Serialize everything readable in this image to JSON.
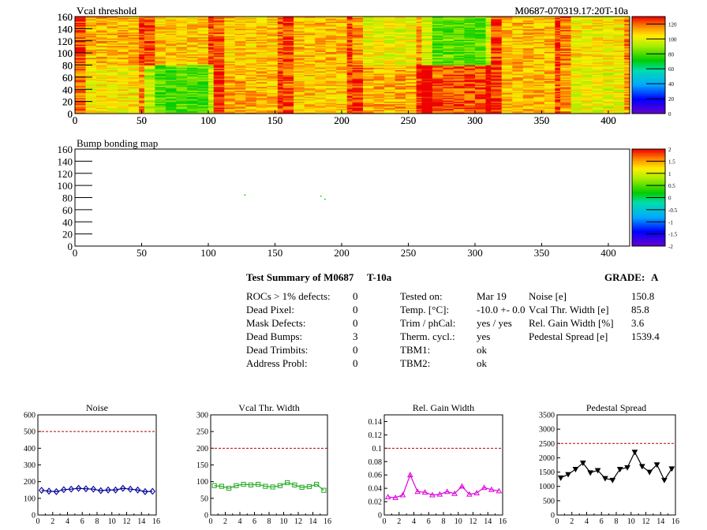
{
  "chart_data": [
    {
      "type": "heatmap",
      "title": "Vcal threshold",
      "title_right": "M0687-070319.17:20T-10a",
      "xlim": [
        0,
        416
      ],
      "ylim": [
        0,
        160
      ],
      "xticks": [
        0,
        50,
        100,
        150,
        200,
        250,
        300,
        350,
        400
      ],
      "yticks": [
        0,
        20,
        40,
        60,
        80,
        100,
        120,
        140,
        160
      ],
      "zlim": [
        0,
        130
      ],
      "zticks": [
        0,
        20,
        40,
        60,
        80,
        100,
        120
      ],
      "roc_mean_values": {
        "bottom_row": [
          103,
          80,
          112,
          108,
          112,
          122,
          110,
          100
        ],
        "top_row": [
          110,
          108,
          108,
          110,
          100,
          82,
          110,
          104
        ]
      }
    },
    {
      "type": "heatmap",
      "title": "Bump bonding map",
      "xlim": [
        0,
        416
      ],
      "ylim": [
        0,
        160
      ],
      "xticks": [
        0,
        50,
        100,
        150,
        200,
        250,
        300,
        350,
        400
      ],
      "yticks": [
        0,
        20,
        40,
        60,
        80,
        100,
        120,
        140,
        160
      ],
      "zlim": [
        -2,
        2
      ],
      "zticks": [
        -2,
        -1.5,
        -1,
        -0.5,
        0,
        0.5,
        1,
        1.5,
        2
      ],
      "points": [
        {
          "x": 127,
          "y": 84,
          "z": 0.2
        },
        {
          "x": 184,
          "y": 82,
          "z": 0.3
        },
        {
          "x": 187,
          "y": 77,
          "z": 0.1
        }
      ]
    },
    {
      "type": "line",
      "title": "Noise",
      "x": [
        0,
        1,
        2,
        3,
        4,
        5,
        6,
        7,
        8,
        9,
        10,
        11,
        12,
        13,
        14,
        15
      ],
      "values": [
        148,
        143,
        140,
        152,
        155,
        160,
        157,
        155,
        146,
        150,
        150,
        160,
        155,
        150,
        140,
        142
      ],
      "reference": 500,
      "xlim": [
        0,
        16
      ],
      "ylim": [
        0,
        600
      ],
      "xticks": [
        0,
        2,
        4,
        6,
        8,
        10,
        12,
        14,
        16
      ],
      "yticks": [
        0,
        100,
        200,
        300,
        400,
        500,
        600
      ],
      "color": "#000099",
      "marker": "diamond"
    },
    {
      "type": "line",
      "title": "Vcal Thr. Width",
      "x": [
        0,
        1,
        2,
        3,
        4,
        5,
        6,
        7,
        8,
        9,
        10,
        11,
        12,
        13,
        14,
        15
      ],
      "values": [
        88,
        86,
        80,
        88,
        92,
        90,
        92,
        86,
        84,
        88,
        97,
        90,
        83,
        85,
        92,
        74
      ],
      "reference": 200,
      "xlim": [
        0,
        16
      ],
      "ylim": [
        0,
        300
      ],
      "xticks": [
        0,
        2,
        4,
        6,
        8,
        10,
        12,
        14,
        16
      ],
      "yticks": [
        0,
        50,
        100,
        150,
        200,
        250,
        300
      ],
      "color": "#22aa22",
      "marker": "square"
    },
    {
      "type": "line",
      "title": "Rel. Gain Width",
      "x": [
        0,
        1,
        2,
        3,
        4,
        5,
        6,
        7,
        8,
        9,
        10,
        11,
        12,
        13,
        14,
        15
      ],
      "values": [
        0.027,
        0.026,
        0.03,
        0.06,
        0.035,
        0.034,
        0.03,
        0.031,
        0.035,
        0.032,
        0.043,
        0.031,
        0.033,
        0.041,
        0.038,
        0.036
      ],
      "reference": 0.1,
      "xlim": [
        0,
        16
      ],
      "ylim": [
        0,
        0.15
      ],
      "xticks": [
        0,
        2,
        4,
        6,
        8,
        10,
        12,
        14,
        16
      ],
      "yticks": [
        0,
        0.02,
        0.04,
        0.06,
        0.08,
        0.1,
        0.12,
        0.14
      ],
      "color": "#dd00dd",
      "marker": "triangle-up"
    },
    {
      "type": "line",
      "title": "Pedestal Spread",
      "x": [
        0,
        1,
        2,
        3,
        4,
        5,
        6,
        7,
        8,
        9,
        10,
        11,
        12,
        13,
        14,
        15
      ],
      "values": [
        1300,
        1420,
        1600,
        1820,
        1480,
        1560,
        1280,
        1220,
        1600,
        1660,
        2200,
        1700,
        1500,
        1760,
        1220,
        1620
      ],
      "reference": 2500,
      "xlim": [
        0,
        16
      ],
      "ylim": [
        0,
        3500
      ],
      "xticks": [
        0,
        2,
        4,
        6,
        8,
        10,
        12,
        14,
        16
      ],
      "yticks": [
        0,
        500,
        1000,
        1500,
        2000,
        2500,
        3000,
        3500
      ],
      "color": "#000000",
      "marker": "triangle-down"
    }
  ],
  "summary": {
    "title": "Test Summary of M0687",
    "subtitle": "T-10a",
    "grade_label": "GRADE:",
    "grade": "A",
    "defects": [
      {
        "label": "ROCs > 1% defects:",
        "value": "0"
      },
      {
        "label": "Dead Pixel:",
        "value": "0"
      },
      {
        "label": "Mask Defects:",
        "value": "0"
      },
      {
        "label": "Dead Bumps:",
        "value": "3"
      },
      {
        "label": "Dead Trimbits:",
        "value": "0"
      },
      {
        "label": "Address Probl:",
        "value": "0"
      }
    ],
    "conditions": [
      {
        "label": "Tested on:",
        "value": "Mar 19"
      },
      {
        "label": "Temp. [°C]:",
        "value": "-10.0 +- 0.0"
      },
      {
        "label": "Trim / phCal:",
        "value": "yes / yes"
      },
      {
        "label": "Therm. cycl.:",
        "value": "yes"
      },
      {
        "label": "TBM1:",
        "value": "ok"
      },
      {
        "label": "TBM2:",
        "value": "ok"
      }
    ],
    "results": [
      {
        "label": "Noise [e]",
        "value": "150.8"
      },
      {
        "label": "Vcal Thr. Width [e]",
        "value": "85.8"
      },
      {
        "label": "Rel. Gain Width [%]",
        "value": "3.6"
      },
      {
        "label": "Pedestal Spread [e]",
        "value": "1539.4"
      }
    ]
  }
}
